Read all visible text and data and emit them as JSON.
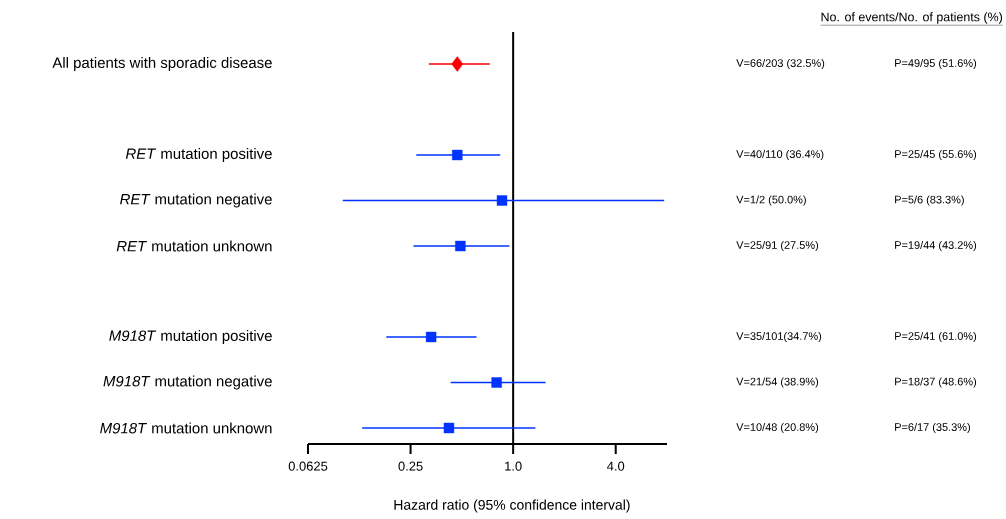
{
  "chart_data": {
    "type": "scatter",
    "orientation": "horizontal",
    "log": "x",
    "categories": [
      "All patients with sporadic disease",
      null,
      "*RET* mutation positive",
      "*RET* mutation negative",
      "*RET* mutation unknown",
      null,
      "*M918T* mutation positive",
      "*M918T* mutation negative",
      "*M918T* mutation unknown"
    ],
    "series": [
      {
        "color": "#ff0000",
        "marker": "diamond",
        "values": [
          0.47,
          null,
          null,
          null,
          null,
          null,
          null,
          null,
          null
        ],
        "errors": [
          [
            0.32,
            0.73
          ],
          null,
          null,
          null,
          null,
          null,
          null,
          null,
          null
        ]
      },
      {
        "color": "#0033ff",
        "marker": "square",
        "values": [
          null,
          null,
          0.47,
          0.86,
          0.49,
          null,
          0.33,
          0.8,
          0.42
        ],
        "errors": [
          null,
          null,
          [
            0.27,
            0.84
          ],
          [
            0.1,
            7.7
          ],
          [
            0.26,
            0.95
          ],
          null,
          [
            0.18,
            0.61
          ],
          [
            0.43,
            1.55
          ],
          [
            0.13,
            1.35
          ]
        ]
      }
    ],
    "xlim": [
      0.0625,
      8
    ],
    "xticks": [
      0.0625,
      0.25,
      {
        "value": 1,
        "label": "1.0"
      },
      {
        "value": 4,
        "label": "4.0"
      }
    ],
    "xlabel": "Hazard ratio (95% confidence interval)",
    "ref_lines": [
      {
        "axis": "x",
        "value": 1,
        "color": "#000000"
      }
    ],
    "annotations": [
      "No. of events/No. of patients (%)",
      "V=66/203 (32.5%)",
      "P=49/95 (51.6%)",
      "V=40/110 (36.4%)",
      "P=25/45 (55.6%)",
      "V=1/2 (50.0%)",
      "P=5/6 (83.3%)",
      "V=25/91 (27.5%)",
      "P=19/44 (43.2%)",
      "V=35/101(34.7%)",
      "P=25/41 (61.0%)",
      "V=21/54 (38.9%)",
      "P=18/37 (48.6%)",
      "V=10/48 (20.8%)",
      "P=6/17 (35.3%)"
    ]
  }
}
